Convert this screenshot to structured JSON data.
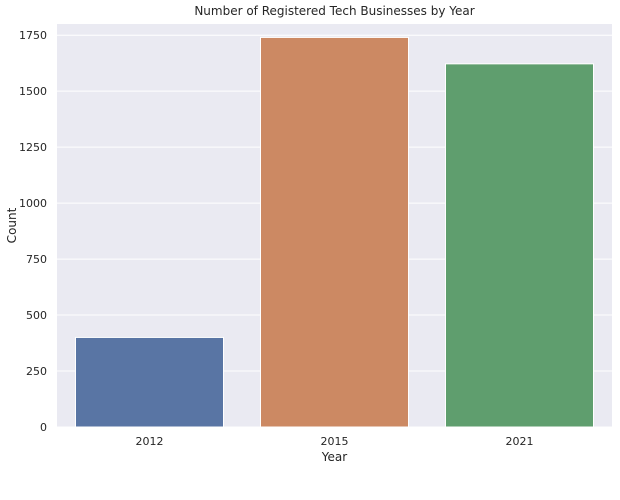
{
  "chart_data": {
    "type": "bar",
    "title": "Number of Registered Tech Businesses by Year",
    "xlabel": "Year",
    "ylabel": "Count",
    "categories": [
      "2012",
      "2015",
      "2021"
    ],
    "values": [
      400,
      1740,
      1622
    ],
    "ylim": [
      0,
      1800
    ],
    "yticks": [
      0,
      250,
      500,
      750,
      1000,
      1250,
      1500,
      1750
    ],
    "grid": true,
    "colors": [
      "#5975a4",
      "#cc8963",
      "#5f9e6e"
    ],
    "background_color": "#eaeaf2"
  }
}
